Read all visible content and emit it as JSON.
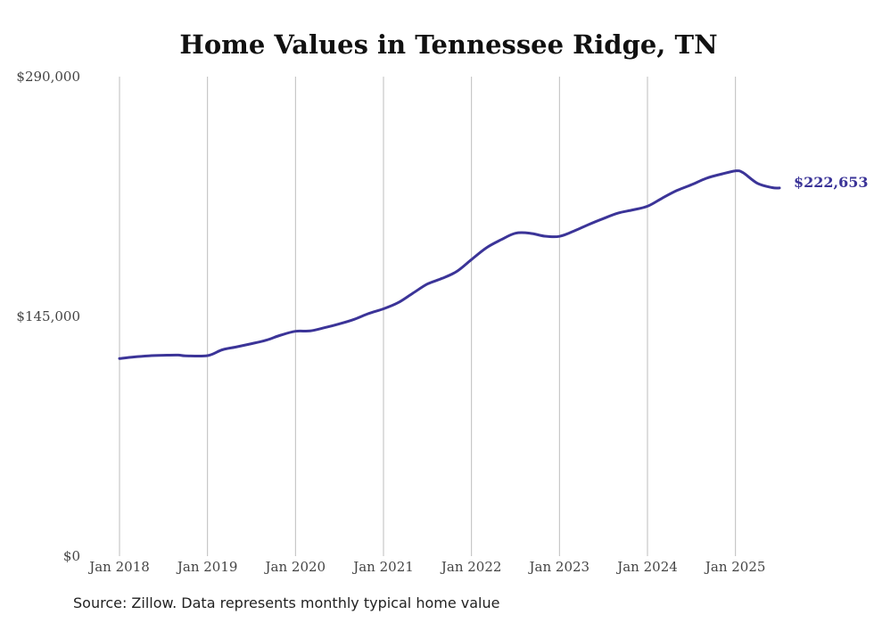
{
  "chart_data": {
    "type": "line",
    "title": "Home Values in Tennessee Ridge, TN",
    "source": "Source: Zillow. Data represents monthly typical home value",
    "y_ticks": [
      {
        "value": 0,
        "label": "$0"
      },
      {
        "value": 145000,
        "label": "$145,000"
      },
      {
        "value": 290000,
        "label": "$290,000"
      }
    ],
    "ylim": [
      0,
      290000
    ],
    "x_ticks": [
      {
        "value": "2018-01",
        "label": "Jan 2018"
      },
      {
        "value": "2019-01",
        "label": "Jan 2019"
      },
      {
        "value": "2020-01",
        "label": "Jan 2020"
      },
      {
        "value": "2021-01",
        "label": "Jan 2021"
      },
      {
        "value": "2022-01",
        "label": "Jan 2022"
      },
      {
        "value": "2023-01",
        "label": "Jan 2023"
      },
      {
        "value": "2024-01",
        "label": "Jan 2024"
      },
      {
        "value": "2025-01",
        "label": "Jan 2025"
      }
    ],
    "xlim": [
      "2018-01",
      "2025-07"
    ],
    "grid": "vertical",
    "line_color": "#3b3498",
    "end_label": "$222,653",
    "series": [
      {
        "x": [
          "2018-01",
          "2018-03",
          "2018-05",
          "2018-07",
          "2018-09",
          "2018-10",
          "2019-01",
          "2019-03",
          "2019-05",
          "2019-07",
          "2019-09",
          "2019-11",
          "2020-01",
          "2020-03",
          "2020-05",
          "2020-07",
          "2020-09",
          "2020-11",
          "2021-01",
          "2021-03",
          "2021-05",
          "2021-07",
          "2021-09",
          "2021-11",
          "2022-01",
          "2022-03",
          "2022-05",
          "2022-07",
          "2022-09",
          "2022-11",
          "2023-01",
          "2023-03",
          "2023-05",
          "2023-07",
          "2023-09",
          "2023-11",
          "2024-01",
          "2024-03",
          "2024-05",
          "2024-07",
          "2024-09",
          "2024-11",
          "2025-01",
          "2025-02",
          "2025-04",
          "2025-06",
          "2025-07"
        ],
        "y": [
          119500,
          120500,
          121200,
          121500,
          121600,
          121200,
          121300,
          124800,
          126600,
          128500,
          130600,
          133700,
          136000,
          136200,
          138200,
          140500,
          143200,
          146800,
          149600,
          153300,
          159000,
          164600,
          168000,
          172200,
          179400,
          186400,
          191300,
          195300,
          195300,
          193500,
          193400,
          196700,
          200600,
          204200,
          207500,
          209400,
          211600,
          216500,
          221100,
          224600,
          228500,
          231000,
          233000,
          232000,
          225500,
          222900,
          222653
        ]
      }
    ]
  }
}
